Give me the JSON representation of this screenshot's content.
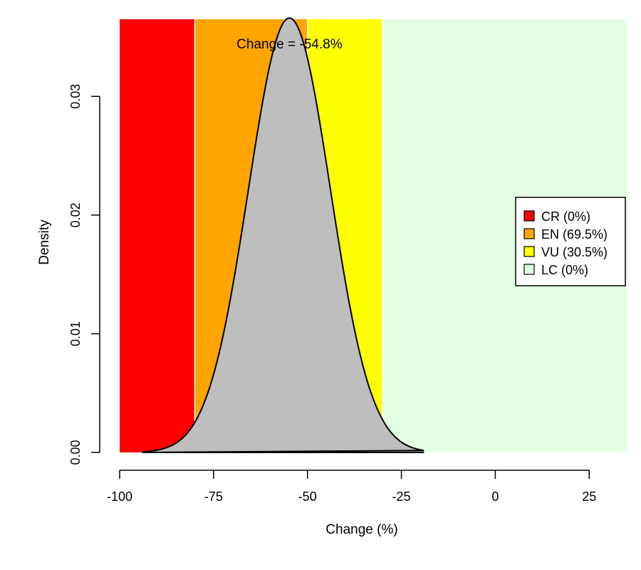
{
  "chart_data": {
    "type": "area",
    "xlabel": "Change (%)",
    "ylabel": "Density",
    "xlim": [
      -100,
      35
    ],
    "ylim": [
      0,
      0.0365
    ],
    "x_ticks": [
      -100,
      -75,
      -50,
      -25,
      0,
      25
    ],
    "x_tick_labels": [
      "-100",
      "-75",
      "-50",
      "-25",
      "0",
      "25"
    ],
    "y_ticks": [
      0.0,
      0.01,
      0.02,
      0.03
    ],
    "y_tick_labels": [
      "0.00",
      "0.01",
      "0.02",
      "0.03"
    ],
    "bands": [
      {
        "from": -100,
        "to": -80,
        "color": "#ff0000"
      },
      {
        "from": -80,
        "to": -50,
        "color": "#ffa500"
      },
      {
        "from": -50,
        "to": -30,
        "color": "#ffff00"
      },
      {
        "from": -30,
        "to": 35,
        "color": "#e3ffe3"
      }
    ],
    "density": {
      "color": "#bebebe",
      "mean": -54.8,
      "sd": 10.9,
      "x_min": -94,
      "x_max": -19
    },
    "annotation": {
      "text": "Change = -54.8%",
      "x": -54.8
    },
    "legend": {
      "position": "right",
      "entries": [
        {
          "label": "CR (0%)",
          "color": "#ff0000"
        },
        {
          "label": "EN (69.5%)",
          "color": "#ffa500"
        },
        {
          "label": "VU (30.5%)",
          "color": "#ffff00"
        },
        {
          "label": "LC (0%)",
          "color": "#e3ffe3"
        }
      ]
    }
  }
}
